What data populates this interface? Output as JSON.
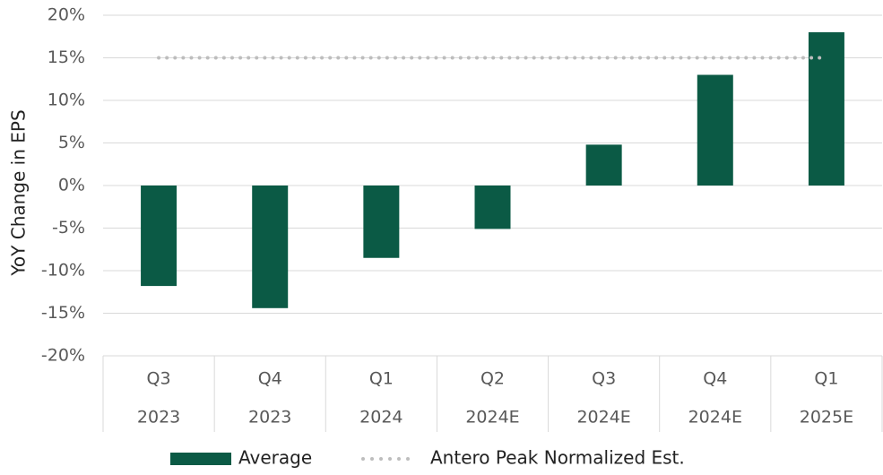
{
  "chart_data": {
    "type": "bar",
    "y_axis_label": "YoY Change in EPS",
    "categories": [
      "Q3",
      "Q4",
      "Q1",
      "Q2",
      "Q3",
      "Q4",
      "Q1"
    ],
    "category_years": [
      "2023",
      "2023",
      "2024",
      "2024E",
      "2024E",
      "2024E",
      "2025E"
    ],
    "series": [
      {
        "name": "Average",
        "type": "bar",
        "color": "#0b5a45",
        "values": [
          -11.8,
          -14.4,
          -8.5,
          -5.1,
          4.8,
          13,
          18
        ]
      },
      {
        "name": "Antero Peak Normalized Est.",
        "type": "line",
        "color": "#bdbdbd",
        "values": [
          15,
          15,
          15,
          15,
          15,
          15,
          15
        ]
      }
    ],
    "ylim": [
      -20,
      20
    ],
    "yticks": [
      {
        "value": -20,
        "label": "-20%"
      },
      {
        "value": -15,
        "label": "-15%"
      },
      {
        "value": -10,
        "label": "-10%"
      },
      {
        "value": -5,
        "label": "-5%"
      },
      {
        "value": 0,
        "label": "0%"
      },
      {
        "value": 5,
        "label": "5%"
      },
      {
        "value": 10,
        "label": "10%"
      },
      {
        "value": 15,
        "label": "15%"
      },
      {
        "value": 20,
        "label": "20%"
      }
    ],
    "grid": true
  }
}
